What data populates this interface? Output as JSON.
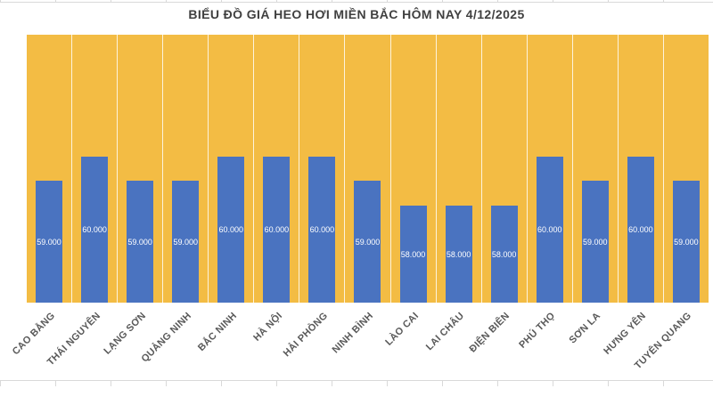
{
  "chart_data": {
    "type": "bar",
    "title": "BIỂU ĐỒ GIÁ HEO HƠI MIỀN BẮC HÔM NAY 4/12/2025",
    "categories": [
      "CAO BẰNG",
      "THÁI NGUYÊN",
      "LẠNG SƠN",
      "QUẢNG NINH",
      "BẮC NINH",
      "HÀ NỘI",
      "HẢI PHÒNG",
      "NINH BÌNH",
      "LÀO CAI",
      "LAI CHÂU",
      "ĐIỆN BIÊN",
      "PHÚ THỌ",
      "SƠN LA",
      "HƯNG YÊN",
      "TUYÊN QUANG"
    ],
    "values": [
      59000,
      60000,
      59000,
      59000,
      60000,
      60000,
      60000,
      59000,
      58000,
      58000,
      58000,
      60000,
      59000,
      60000,
      59000
    ],
    "data_labels": [
      "59.000",
      "60.000",
      "59.000",
      "59.000",
      "60.000",
      "60.000",
      "60.000",
      "59.000",
      "58.000",
      "58.000",
      "58.000",
      "60.000",
      "59.000",
      "60.000",
      "59.000"
    ],
    "xlabel": "",
    "ylabel": "",
    "ylim": [
      54000,
      65000
    ],
    "y_axis_visible": false,
    "horizontal_grid": false,
    "vertical_category_separators": true,
    "data_label_position": "inside-center",
    "legend": "none",
    "colors": {
      "bar": "#4A73C0",
      "plot_bg": "#F3BC44",
      "gridline": "#FDF3DC",
      "label_text": "#FFFFFF",
      "title_text": "#404040",
      "axis_text": "#595959",
      "sheet_line": "#D9D9D9"
    }
  }
}
